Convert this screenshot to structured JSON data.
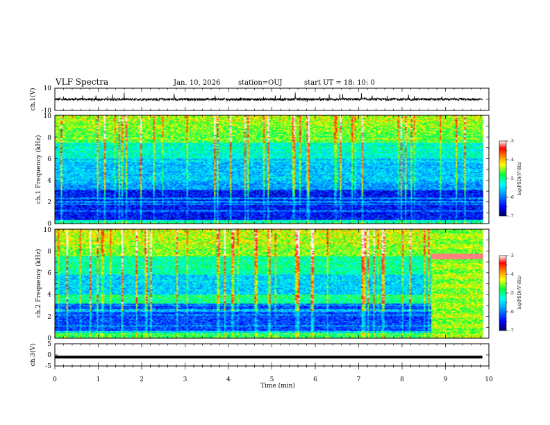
{
  "header": {
    "title": "VLF Spectra",
    "date": "Jan. 10, 2026",
    "station": "station=OUJ",
    "start": "start UT =  18: 10: 0"
  },
  "chart_data": [
    {
      "id": "waveform-ch1",
      "type": "line",
      "ylabel": "ch.1(V)",
      "ylim": [
        -10,
        10
      ],
      "yticks": [
        "10",
        "-10"
      ],
      "xlim": [
        0,
        10
      ],
      "signal_end_min": 9.85,
      "baseline_v": 0
    },
    {
      "id": "spectrogram-ch1",
      "type": "heatmap",
      "ylabel": "ch.1 Frequency (kHz)",
      "ylim": [
        0,
        10
      ],
      "yticks": [
        "0",
        "2",
        "4",
        "6",
        "8",
        "10"
      ],
      "xlim": [
        0,
        10
      ],
      "signal_end_min": 9.85,
      "colorbar": {
        "label": "log(PSD)(V²/Hz)",
        "range": [
          -7,
          -3
        ],
        "ticks": [
          "-3",
          "-4",
          "-5",
          "-6",
          "-7"
        ]
      }
    },
    {
      "id": "spectrogram-ch2",
      "type": "heatmap",
      "ylabel": "ch.2 Frequency (kHz)",
      "ylim": [
        0,
        10
      ],
      "yticks": [
        "0",
        "2",
        "4",
        "6",
        "8",
        "10"
      ],
      "xlim": [
        0,
        10
      ],
      "signal_end_min": 9.85,
      "interference_start_min": 8.65,
      "colorbar": {
        "label": "log(PSD)(V²/Hz)",
        "range": [
          -7,
          -3
        ],
        "ticks": [
          "-3",
          "-4",
          "-5",
          "-6",
          "-7"
        ]
      }
    },
    {
      "id": "waveform-ch3",
      "type": "line",
      "ylabel": "ch.3(V)",
      "ylim": [
        -5,
        5
      ],
      "yticks": [
        "5",
        "0",
        "-5"
      ],
      "xlim": [
        0,
        10
      ],
      "signal_end_min": 9.85,
      "level_v": -1
    }
  ],
  "xaxis": {
    "label": "Time (min)",
    "ticks": [
      "0",
      "1",
      "2",
      "3",
      "4",
      "5",
      "6",
      "7",
      "8",
      "9",
      "10"
    ]
  }
}
